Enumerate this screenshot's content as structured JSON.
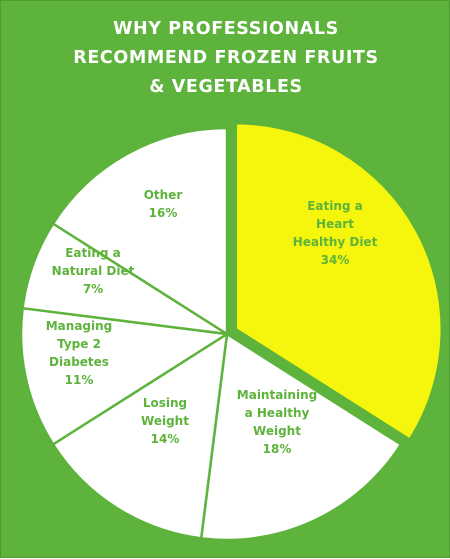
{
  "chart_data": {
    "type": "pie",
    "title_lines": [
      "WHY PROFESSIONALS",
      "RECOMMEND FROZEN FRUITS",
      "& VEGETABLES"
    ],
    "slices": [
      {
        "label_lines": [
          "Eating a",
          "Heart",
          "Healthy Diet",
          "34%"
        ],
        "label": "Eating a Heart Healthy Diet",
        "value": 34,
        "color": "#f5f50e",
        "exploded": true
      },
      {
        "label_lines": [
          "Maintaining",
          "a Healthy",
          "Weight",
          "18%"
        ],
        "label": "Maintaining a Healthy Weight",
        "value": 18,
        "color": "#ffffff"
      },
      {
        "label_lines": [
          "Losing",
          "Weight",
          "14%"
        ],
        "label": "Losing Weight",
        "value": 14,
        "color": "#ffffff"
      },
      {
        "label_lines": [
          "Managing",
          "Type 2",
          "Diabetes",
          "11%"
        ],
        "label": "Managing Type 2 Diabetes",
        "value": 11,
        "color": "#ffffff"
      },
      {
        "label_lines": [
          "Eating a",
          "Natural Diet",
          "7%"
        ],
        "label": "Eating a Natural Diet",
        "value": 7,
        "color": "#ffffff"
      },
      {
        "label_lines": [
          "Other",
          "16%"
        ],
        "label": "Other",
        "value": 16,
        "color": "#ffffff"
      }
    ],
    "colors": {
      "background": "#5db33b",
      "text": "#5db33b",
      "slice_border": "#5db33b"
    }
  }
}
